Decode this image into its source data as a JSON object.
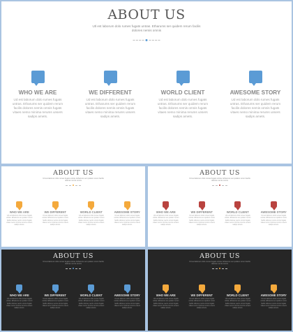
{
  "title": "ABOUT US",
  "subtitle": "Utl est laborum dolo rumes fugats untras. Etharums ser quidem rerum facilis dolores nemis omnis",
  "columns": [
    {
      "heading": "WHO WE ARE",
      "body": "Ud est laborum dolo rumes fugats untras. Etharums ser quidem rerum facilis dolores nemis omnis fugats vitaes nemo minima rerums unsers sadips amets."
    },
    {
      "heading": "WE DIFFERENT",
      "body": "Ud est laborum dolo rumes fugats untras. Etharums ser quidem rerum facilis dolores nemis omnis fugats vitaes nemo minima rerums unsers sadips amets."
    },
    {
      "heading": "WORLD CLIENT",
      "body": "Ud est laborum dolo rumes fugats untras. Etharums ser quidem rerum facilis dolores nemis omnis fugats vitaes nemo minima rerums unsers sadips amets."
    },
    {
      "heading": "AWESOME STORY",
      "body": "Ud est laborum dolo rumes fugats untras. Etharums ser quidem rerum facilis dolores nemis omnis fugats vitaes nemo minima rerums unsers sadips amets."
    }
  ],
  "slides": [
    {
      "id": "s-main",
      "theme": "light",
      "accent": "#5b9bd5",
      "divider_dot": "#5b9bd5",
      "size": "large",
      "icon": "speech-bubble-icon"
    },
    {
      "id": "s-tl",
      "theme": "light",
      "accent": "#f4a93c",
      "divider_dot": "#f4a93c",
      "size": "small",
      "icon": "speech-bubble-icon"
    },
    {
      "id": "s-tr",
      "theme": "light",
      "accent": "#b9433f",
      "divider_dot": "#b9433f",
      "size": "small",
      "icon": "speech-bubble-icon"
    },
    {
      "id": "s-bl",
      "theme": "dark",
      "accent": "#5b9bd5",
      "divider_dot": "#5b9bd5",
      "size": "small",
      "icon": "speech-bubble-icon"
    },
    {
      "id": "s-br",
      "theme": "dark",
      "accent": "#f4a93c",
      "divider_dot": "#f4a93c",
      "size": "small",
      "icon": "speech-bubble-icon"
    }
  ]
}
